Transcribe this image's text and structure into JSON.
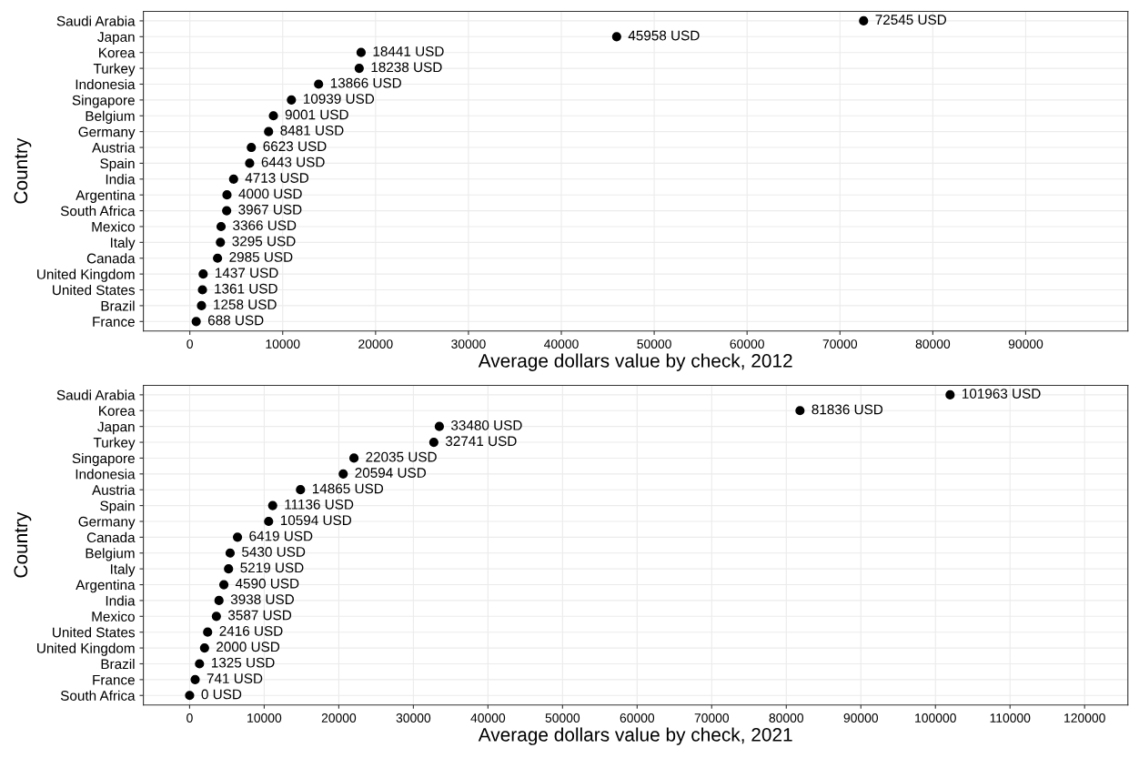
{
  "chart_data": [
    {
      "type": "scatter",
      "orientation": "horizontal",
      "xlabel": "Average dollars value by check, 2012",
      "ylabel": "Country",
      "categories": [
        "Saudi Arabia",
        "Japan",
        "Korea",
        "Turkey",
        "Indonesia",
        "Singapore",
        "Belgium",
        "Germany",
        "Austria",
        "Spain",
        "India",
        "Argentina",
        "South Africa",
        "Mexico",
        "Italy",
        "Canada",
        "United Kingdom",
        "United States",
        "Brazil",
        "France"
      ],
      "values": [
        72545,
        45958,
        18441,
        18238,
        13866,
        10939,
        9001,
        8481,
        6623,
        6443,
        4713,
        4000,
        3967,
        3366,
        3295,
        2985,
        1437,
        1361,
        1258,
        688
      ],
      "value_labels": [
        "72545 USD",
        "45958 USD",
        "18441 USD",
        "18238 USD",
        "13866 USD",
        "10939 USD",
        "9001 USD",
        "8481 USD",
        "6623 USD",
        "6443 USD",
        "4713 USD",
        "4000 USD",
        "3967 USD",
        "3366 USD",
        "3295 USD",
        "2985 USD",
        "1437 USD",
        "1361 USD",
        "1258 USD",
        "688 USD"
      ],
      "color": "#000000",
      "marker": "circle",
      "grid": true,
      "xlim": [
        -5000,
        101000
      ],
      "xticks": [
        0,
        10000,
        20000,
        30000,
        40000,
        50000,
        60000,
        70000,
        80000,
        90000
      ]
    },
    {
      "type": "scatter",
      "orientation": "horizontal",
      "xlabel": "Average dollars value by check, 2021",
      "ylabel": "Country",
      "categories": [
        "Saudi Arabia",
        "Korea",
        "Japan",
        "Turkey",
        "Singapore",
        "Indonesia",
        "Austria",
        "Spain",
        "Germany",
        "Canada",
        "Belgium",
        "Italy",
        "Argentina",
        "India",
        "Mexico",
        "United States",
        "United Kingdom",
        "Brazil",
        "France",
        "South Africa"
      ],
      "values": [
        101963,
        81836,
        33480,
        32741,
        22035,
        20594,
        14865,
        11136,
        10594,
        6419,
        5430,
        5219,
        4590,
        3938,
        3587,
        2416,
        2000,
        1325,
        741,
        0
      ],
      "value_labels": [
        "101963 USD",
        "81836 USD",
        "33480 USD",
        "32741 USD",
        "22035 USD",
        "20594 USD",
        "14865 USD",
        "11136 USD",
        "10594 USD",
        "6419 USD",
        "5430 USD",
        "5219 USD",
        "4590 USD",
        "3938 USD",
        "3587 USD",
        "2416 USD",
        "2000 USD",
        "1325 USD",
        "741 USD",
        "0 USD"
      ],
      "color": "#000000",
      "marker": "circle",
      "grid": true,
      "xlim": [
        -6200,
        125800
      ],
      "xticks": [
        0,
        10000,
        20000,
        30000,
        40000,
        50000,
        60000,
        70000,
        80000,
        90000,
        100000,
        110000,
        120000
      ]
    }
  ]
}
